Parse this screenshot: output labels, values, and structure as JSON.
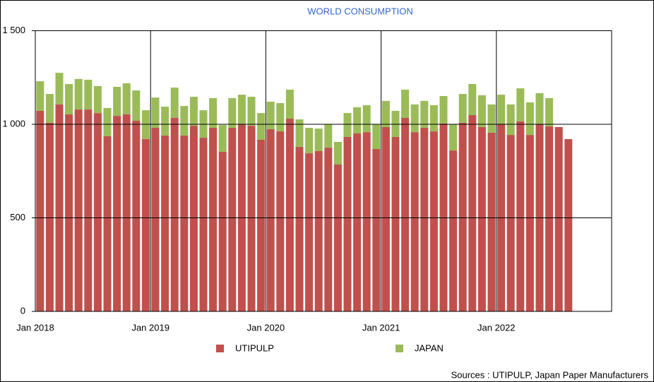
{
  "chart_data": {
    "type": "stacked_bar",
    "title": "WORLD CONSUMPTION",
    "categories": [
      "Jan 2018",
      null,
      null,
      null,
      null,
      null,
      null,
      null,
      null,
      null,
      null,
      null,
      "Jan 2019",
      null,
      null,
      null,
      null,
      null,
      null,
      null,
      null,
      null,
      null,
      null,
      "Jan 2020",
      null,
      null,
      null,
      null,
      null,
      null,
      null,
      null,
      null,
      null,
      null,
      "Jan 2021",
      null,
      null,
      null,
      null,
      null,
      null,
      null,
      null,
      null,
      null,
      null,
      "Jan 2022",
      null,
      null,
      null,
      null,
      null,
      null,
      null
    ],
    "series": [
      {
        "name": "UTIPULP",
        "color": "#c0504d",
        "values": [
          1072,
          1008,
          1106,
          1053,
          1079,
          1079,
          1060,
          936,
          1045,
          1053,
          1019,
          921,
          981,
          940,
          1034,
          940,
          992,
          928,
          981,
          853,
          981,
          1000,
          992,
          917,
          974,
          962,
          1030,
          879,
          845,
          857,
          875,
          785,
          932,
          951,
          958,
          868,
          985,
          932,
          1034,
          958,
          981,
          962,
          1004,
          860,
          1008,
          1049,
          985,
          955,
          1000,
          943,
          1015,
          943,
          1000,
          989,
          985,
          921
        ]
      },
      {
        "name": "JAPAN",
        "color": "#9bbb59",
        "values": [
          158,
          154,
          169,
          162,
          163,
          159,
          144,
          151,
          155,
          166,
          162,
          154,
          162,
          154,
          162,
          158,
          155,
          147,
          159,
          143,
          159,
          158,
          155,
          143,
          147,
          151,
          155,
          147,
          136,
          120,
          125,
          121,
          128,
          140,
          144,
          132,
          140,
          140,
          151,
          148,
          144,
          140,
          147,
          140,
          154,
          166,
          170,
          151,
          158,
          163,
          177,
          174,
          166,
          151,
          null,
          null
        ]
      }
    ],
    "ylim": [
      0,
      1500
    ],
    "yticks": [
      0,
      500,
      {
        "value": 1000,
        "label": "1 000"
      },
      {
        "value": 1500,
        "label": "1 500"
      }
    ],
    "grid": true,
    "source": "Sources : UTIPULP, Japan Paper Manufacturers"
  }
}
